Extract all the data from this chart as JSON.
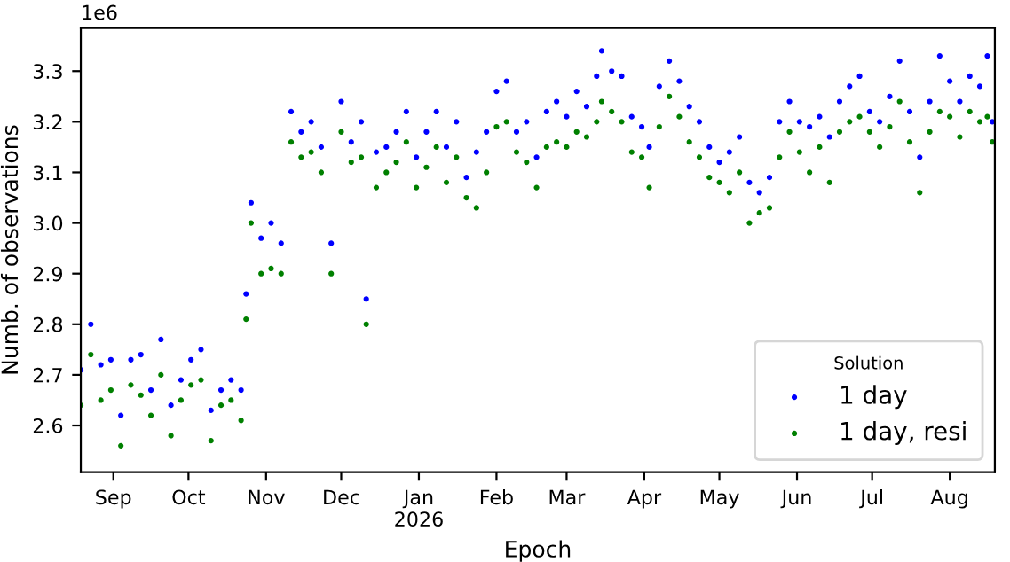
{
  "chart_data": {
    "type": "scatter",
    "xlabel": "Epoch",
    "ylabel": "Numb. of observations",
    "legend_title": "Solution",
    "legend": "bottom right",
    "grid": false,
    "marker": "circle",
    "annotations": [
      "1e6"
    ],
    "xlim": [
      "2025-08-19",
      "2026-08-19"
    ],
    "ylim": [
      2.508,
      3.385
    ],
    "xticks": [
      {
        "value": "2025-09-01",
        "label": "Sep"
      },
      {
        "value": "2025-10-01",
        "label": "Oct"
      },
      {
        "value": "2025-11-01",
        "label": "Nov"
      },
      {
        "value": "2025-12-01",
        "label": "Dec"
      },
      {
        "value": "2026-01-01",
        "label": "Jan\n2026"
      },
      {
        "value": "2026-02-01",
        "label": "Feb"
      },
      {
        "value": "2026-03-01",
        "label": "Mar"
      },
      {
        "value": "2026-04-01",
        "label": "Apr"
      },
      {
        "value": "2026-05-01",
        "label": "May"
      },
      {
        "value": "2026-06-01",
        "label": "Jun"
      },
      {
        "value": "2026-07-01",
        "label": "Jul"
      },
      {
        "value": "2026-08-01",
        "label": "Aug"
      }
    ],
    "yticks": [
      2.6,
      2.7,
      2.8,
      2.9,
      {
        "value": 3,
        "label": "3.0"
      },
      3.1,
      3.2,
      3.3
    ],
    "x": [
      "2025-08-19",
      "2025-08-23",
      "2025-08-27",
      "2025-08-31",
      "2025-09-04",
      "2025-09-08",
      "2025-09-12",
      "2025-09-16",
      "2025-09-20",
      "2025-09-24",
      "2025-09-28",
      "2025-10-02",
      "2025-10-06",
      "2025-10-10",
      "2025-10-14",
      "2025-10-18",
      "2025-10-22",
      "2025-10-24",
      "2025-10-26",
      "2025-10-30",
      "2025-11-03",
      "2025-11-07",
      "2025-11-11",
      "2025-11-15",
      "2025-11-19",
      "2025-11-23",
      "2025-11-27",
      "2025-12-01",
      "2025-12-05",
      "2025-12-09",
      "2025-12-11",
      "2025-12-15",
      "2025-12-19",
      "2025-12-23",
      "2025-12-27",
      "2025-12-31",
      "2026-01-04",
      "2026-01-08",
      "2026-01-12",
      "2026-01-16",
      "2026-01-20",
      "2026-01-24",
      "2026-01-28",
      "2026-02-01",
      "2026-02-05",
      "2026-02-09",
      "2026-02-13",
      "2026-02-17",
      "2026-02-21",
      "2026-02-25",
      "2026-03-01",
      "2026-03-05",
      "2026-03-09",
      "2026-03-13",
      "2026-03-15",
      "2026-03-19",
      "2026-03-23",
      "2026-03-27",
      "2026-03-31",
      "2026-04-03",
      "2026-04-07",
      "2026-04-11",
      "2026-04-15",
      "2026-04-19",
      "2026-04-23",
      "2026-04-27",
      "2026-05-01",
      "2026-05-05",
      "2026-05-09",
      "2026-05-13",
      "2026-05-17",
      "2026-05-21",
      "2026-05-25",
      "2026-05-29",
      "2026-06-02",
      "2026-06-06",
      "2026-06-10",
      "2026-06-14",
      "2026-06-18",
      "2026-06-22",
      "2026-06-26",
      "2026-06-30",
      "2026-07-04",
      "2026-07-08",
      "2026-07-12",
      "2026-07-16",
      "2026-07-20",
      "2026-07-24",
      "2026-07-28",
      "2026-08-01",
      "2026-08-05",
      "2026-08-09",
      "2026-08-13",
      "2026-08-16",
      "2026-08-18"
    ],
    "series": [
      {
        "name": "1 day",
        "color": "#0000ff",
        "values": [
          2.71,
          2.8,
          2.72,
          2.73,
          2.62,
          2.73,
          2.74,
          2.67,
          2.77,
          2.64,
          2.69,
          2.73,
          2.75,
          2.63,
          2.67,
          2.69,
          2.67,
          2.86,
          3.04,
          2.97,
          3.0,
          2.96,
          3.22,
          3.18,
          3.2,
          3.15,
          2.96,
          3.24,
          3.16,
          3.2,
          2.85,
          3.14,
          3.15,
          3.18,
          3.22,
          3.13,
          3.18,
          3.22,
          3.15,
          3.2,
          3.09,
          3.14,
          3.18,
          3.26,
          3.28,
          3.18,
          3.2,
          3.13,
          3.22,
          3.24,
          3.21,
          3.26,
          3.23,
          3.29,
          3.34,
          3.3,
          3.29,
          3.21,
          3.19,
          3.15,
          3.27,
          3.32,
          3.28,
          3.23,
          3.2,
          3.15,
          3.12,
          3.14,
          3.17,
          3.08,
          3.06,
          3.09,
          3.2,
          3.24,
          3.2,
          3.19,
          3.21,
          3.17,
          3.24,
          3.27,
          3.29,
          3.22,
          3.2,
          3.25,
          3.32,
          3.22,
          3.13,
          3.24,
          3.33,
          3.28,
          3.24,
          3.29,
          3.27,
          3.33,
          3.2
        ]
      },
      {
        "name": "1 day, resi",
        "color": "#008000",
        "values": [
          2.64,
          2.74,
          2.65,
          2.67,
          2.56,
          2.68,
          2.66,
          2.62,
          2.7,
          2.58,
          2.65,
          2.68,
          2.69,
          2.57,
          2.64,
          2.65,
          2.61,
          2.81,
          3.0,
          2.9,
          2.91,
          2.9,
          3.16,
          3.13,
          3.14,
          3.1,
          2.9,
          3.18,
          3.12,
          3.13,
          2.8,
          3.07,
          3.1,
          3.12,
          3.16,
          3.07,
          3.11,
          3.15,
          3.08,
          3.13,
          3.05,
          3.03,
          3.1,
          3.19,
          3.2,
          3.14,
          3.12,
          3.07,
          3.15,
          3.16,
          3.15,
          3.18,
          3.17,
          3.2,
          3.24,
          3.22,
          3.2,
          3.14,
          3.13,
          3.07,
          3.19,
          3.25,
          3.21,
          3.16,
          3.13,
          3.09,
          3.08,
          3.06,
          3.1,
          3.0,
          3.02,
          3.03,
          3.13,
          3.18,
          3.14,
          3.1,
          3.15,
          3.08,
          3.18,
          3.2,
          3.21,
          3.18,
          3.15,
          3.19,
          3.24,
          3.16,
          3.06,
          3.18,
          3.22,
          3.21,
          3.17,
          3.22,
          3.2,
          3.21,
          3.16
        ]
      }
    ]
  }
}
